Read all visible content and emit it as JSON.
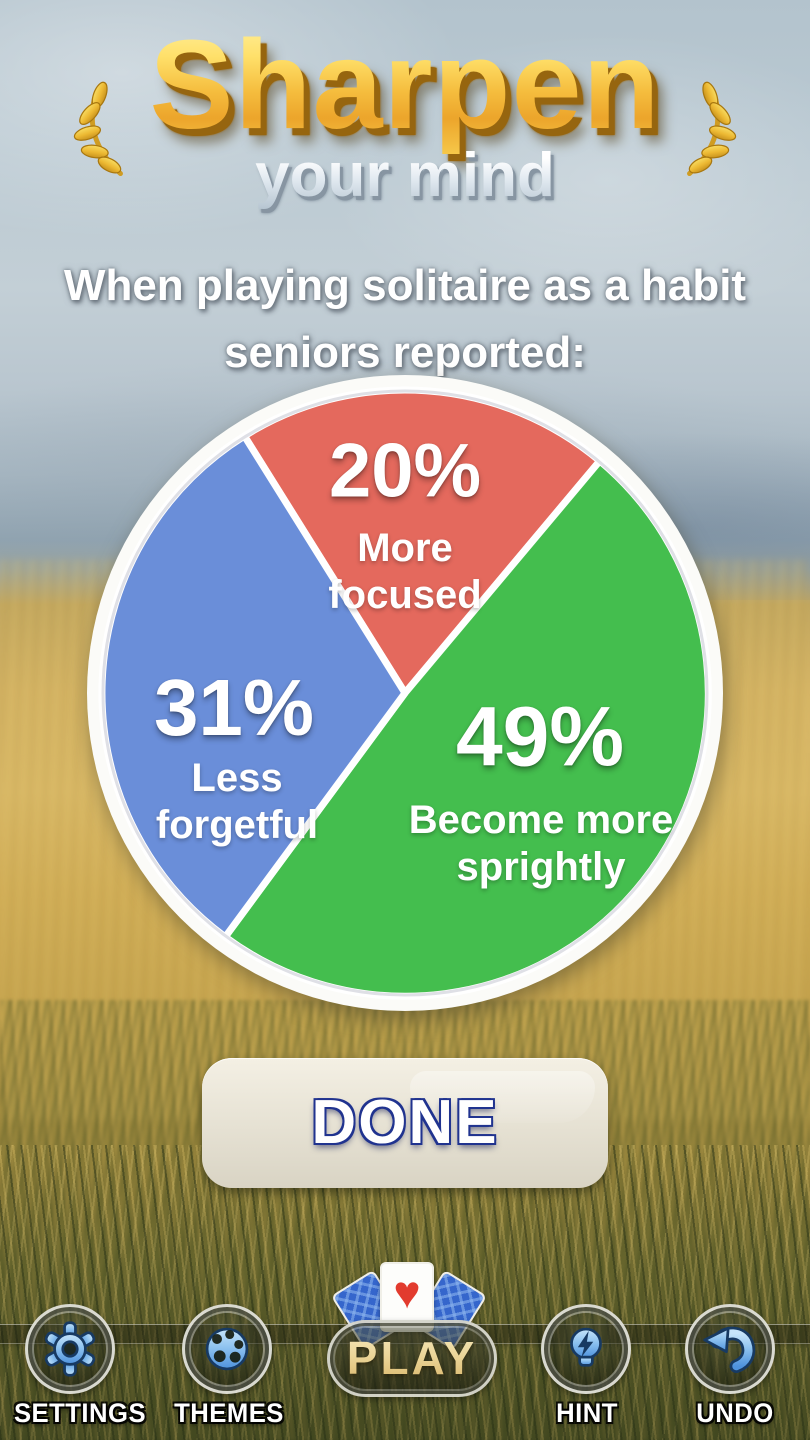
{
  "header": {
    "title": "Sharpen",
    "subtitle": "your mind"
  },
  "promo": {
    "line1": "When playing solitaire as a habit",
    "line2": "seniors reported:"
  },
  "chart_data": {
    "type": "pie",
    "title": "When playing solitaire as a habit seniors reported:",
    "start_angle_deg": -32,
    "labels_inside": true,
    "legend_position": "none",
    "ring_color": "#FBFBF8",
    "slices": [
      {
        "label": "More focused",
        "value": 20,
        "pct_label": "20%",
        "color": "#E4695D"
      },
      {
        "label": "Become more sprightly",
        "value": 49,
        "pct_label": "49%",
        "color": "#44BE4E"
      },
      {
        "label": "Less forgetful",
        "value": 31,
        "pct_label": "31%",
        "color": "#6A8ED9"
      }
    ]
  },
  "actions": {
    "done": "DONE"
  },
  "toolbar": {
    "settings": {
      "label": "SETTINGS",
      "icon": "gear-icon"
    },
    "themes": {
      "label": "THEMES",
      "icon": "palette-icon"
    },
    "play": {
      "label": "PLAY",
      "icon": "card-fan-icon"
    },
    "hint": {
      "label": "HINT",
      "icon": "lightbulb-icon"
    },
    "undo": {
      "label": "UNDO",
      "icon": "undo-arrow-icon"
    }
  },
  "icons": {
    "card_heart": "♥"
  },
  "colors": {
    "gold_title": "#F5C842",
    "done_button_blue": "#2254C8",
    "toolbar_icon_blue": "#7FBCEF",
    "pie_ring_white": "#FBFBF8"
  }
}
